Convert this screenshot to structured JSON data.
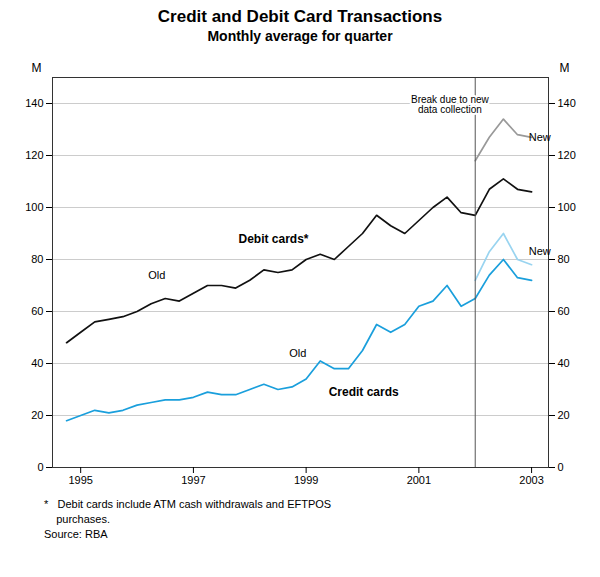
{
  "chart_data": {
    "type": "line",
    "title": "Credit and Debit Card Transactions",
    "subtitle": "Monthly average for quarter",
    "ylabel": "M",
    "y2label": "M",
    "xlim": [
      1994.5,
      2003.3
    ],
    "xticks": [
      1995,
      1997,
      1999,
      2001,
      2003
    ],
    "ylim": [
      0,
      150
    ],
    "yticks": [
      0,
      20,
      40,
      60,
      80,
      100,
      120,
      140
    ],
    "y2lim": [
      0,
      150
    ],
    "y2ticks": [
      0,
      20,
      40,
      60,
      80,
      100,
      120,
      140
    ],
    "grid": true,
    "series": [
      {
        "color": "#111111",
        "x": [
          1994.75,
          1995.0,
          1995.25,
          1995.5,
          1995.75,
          1996.0,
          1996.25,
          1996.5,
          1996.75,
          1997.0,
          1997.25,
          1997.5,
          1997.75,
          1998.0,
          1998.25,
          1998.5,
          1998.75,
          1999.0,
          1999.25,
          1999.5,
          1999.75,
          2000.0,
          2000.25,
          2000.5,
          2000.75,
          2001.0,
          2001.25,
          2001.5,
          2001.75,
          2002.0
        ],
        "values": [
          48,
          52,
          56,
          57,
          58,
          60,
          63,
          65,
          64,
          67,
          70,
          70,
          69,
          72,
          76,
          75,
          76,
          80,
          82,
          80,
          85,
          90,
          97,
          93,
          90,
          95,
          100,
          104,
          98,
          97
        ]
      },
      {
        "color": "#111111",
        "x": [
          2002.0,
          2002.25,
          2002.5,
          2002.75,
          2003.0
        ],
        "values": [
          97,
          107,
          111,
          107,
          106
        ]
      },
      {
        "color": "#999999",
        "x": [
          2002.0,
          2002.25,
          2002.5,
          2002.75,
          2003.0
        ],
        "values": [
          118,
          127,
          134,
          128,
          127
        ]
      },
      {
        "color": "#1a9fdc",
        "x": [
          1994.75,
          1995.0,
          1995.25,
          1995.5,
          1995.75,
          1996.0,
          1996.25,
          1996.5,
          1996.75,
          1997.0,
          1997.25,
          1997.5,
          1997.75,
          1998.0,
          1998.25,
          1998.5,
          1998.75,
          1999.0,
          1999.25,
          1999.5,
          1999.75,
          2000.0,
          2000.25,
          2000.5,
          2000.75,
          2001.0,
          2001.25,
          2001.5,
          2001.75,
          2002.0
        ],
        "values": [
          18,
          20,
          22,
          21,
          22,
          24,
          25,
          26,
          26,
          27,
          29,
          28,
          28,
          30,
          32,
          30,
          31,
          34,
          41,
          38,
          38,
          45,
          55,
          52,
          55,
          62,
          64,
          70,
          62,
          65
        ]
      },
      {
        "color": "#1a9fdc",
        "x": [
          2002.0,
          2002.25,
          2002.5,
          2002.75,
          2003.0
        ],
        "values": [
          65,
          74,
          80,
          73,
          72
        ]
      },
      {
        "color": "#99d4f0",
        "x": [
          2002.0,
          2002.25,
          2002.5,
          2002.75,
          2003.0
        ],
        "values": [
          72,
          83,
          90,
          80,
          78
        ]
      }
    ],
    "reference_lines": [
      {
        "x": 2002.0,
        "color": "#555555"
      }
    ],
    "series_labels": [
      {
        "text": "Debit cards*",
        "x": 1997.8,
        "y": 88
      },
      {
        "text": "Credit cards",
        "x": 1999.4,
        "y": 29
      }
    ],
    "annotations": [
      {
        "text": "Old",
        "x": 1996.2,
        "y": 74
      },
      {
        "text": "New",
        "x": 2002.95,
        "y": 127
      },
      {
        "text": "Old",
        "x": 1998.7,
        "y": 44
      },
      {
        "text": "New",
        "x": 2002.95,
        "y": 83
      }
    ],
    "break_annotation": {
      "text": "Break due to new\ndata collection",
      "x": 2001.55,
      "y": 143
    },
    "footnotes": [
      "*   Debit cards include ATM cash withdrawals and EFTPOS",
      "    purchases.",
      "Source: RBA"
    ]
  }
}
